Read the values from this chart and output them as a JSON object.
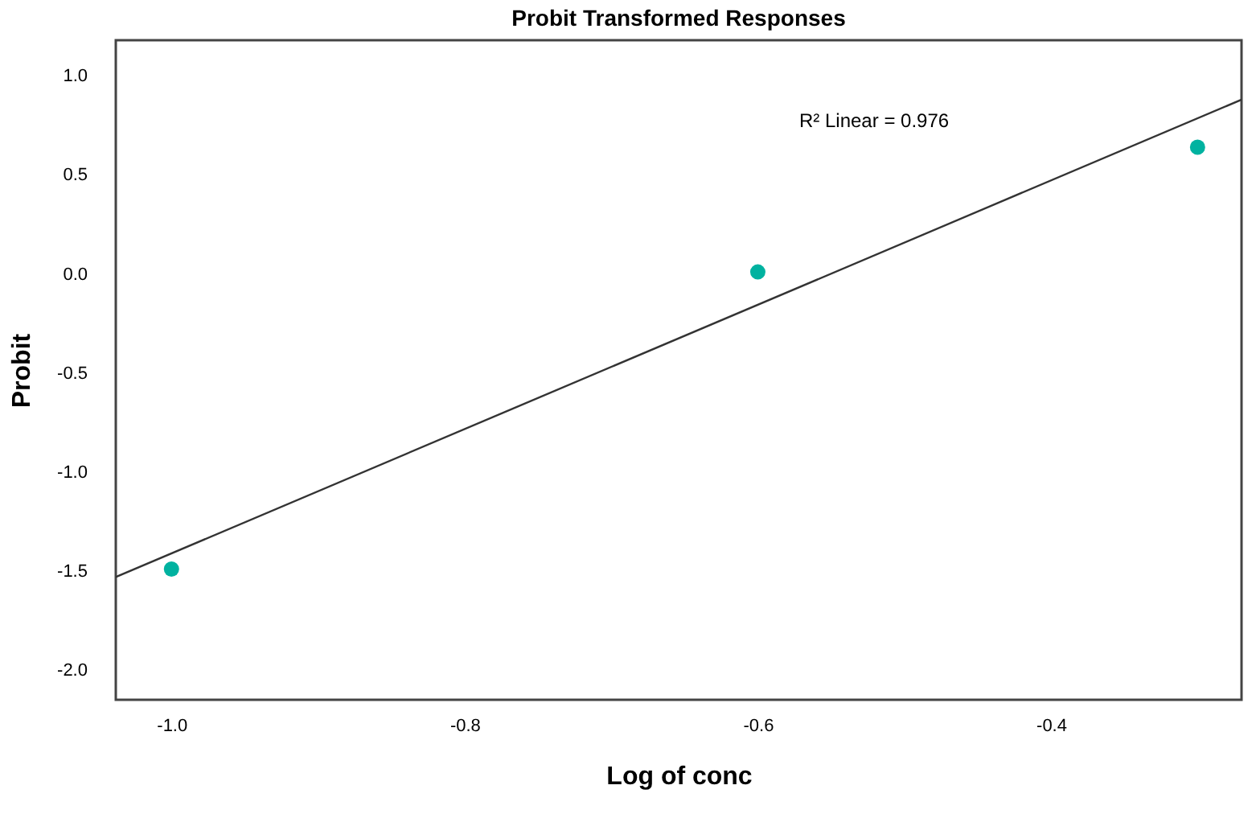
{
  "chart_data": {
    "type": "scatter",
    "title": "Probit Transformed Responses",
    "xlabel": "Log of conc",
    "ylabel": "Probit",
    "x": [
      -1.0,
      -0.6,
      -0.3
    ],
    "series": [
      {
        "color": "#00b2a0",
        "values": [
          -1.49,
          0.01,
          0.64
        ],
        "marker": "circle"
      },
      {
        "type": "line",
        "color": "#333333",
        "x": [
          -1.038,
          -0.27
        ],
        "values": [
          -1.53,
          0.88
        ],
        "line_style": "solid"
      }
    ],
    "annotations": [
      "R² Linear = 0.976"
    ],
    "xlim": [
      -1.038,
      -0.27
    ],
    "xticks": [
      {
        "value": -1.0,
        "label": "-1.0"
      },
      -0.8,
      -0.6,
      -0.4
    ],
    "ylim": [
      -2.15,
      1.18
    ],
    "yticks": [
      {
        "value": -2.0,
        "label": "-2.0"
      },
      -1.5,
      {
        "value": -1.0,
        "label": "-1.0"
      },
      -0.5,
      {
        "value": 0.0,
        "label": "0.0"
      },
      0.5,
      {
        "value": 1.0,
        "label": "1.0"
      }
    ],
    "grid": false
  }
}
